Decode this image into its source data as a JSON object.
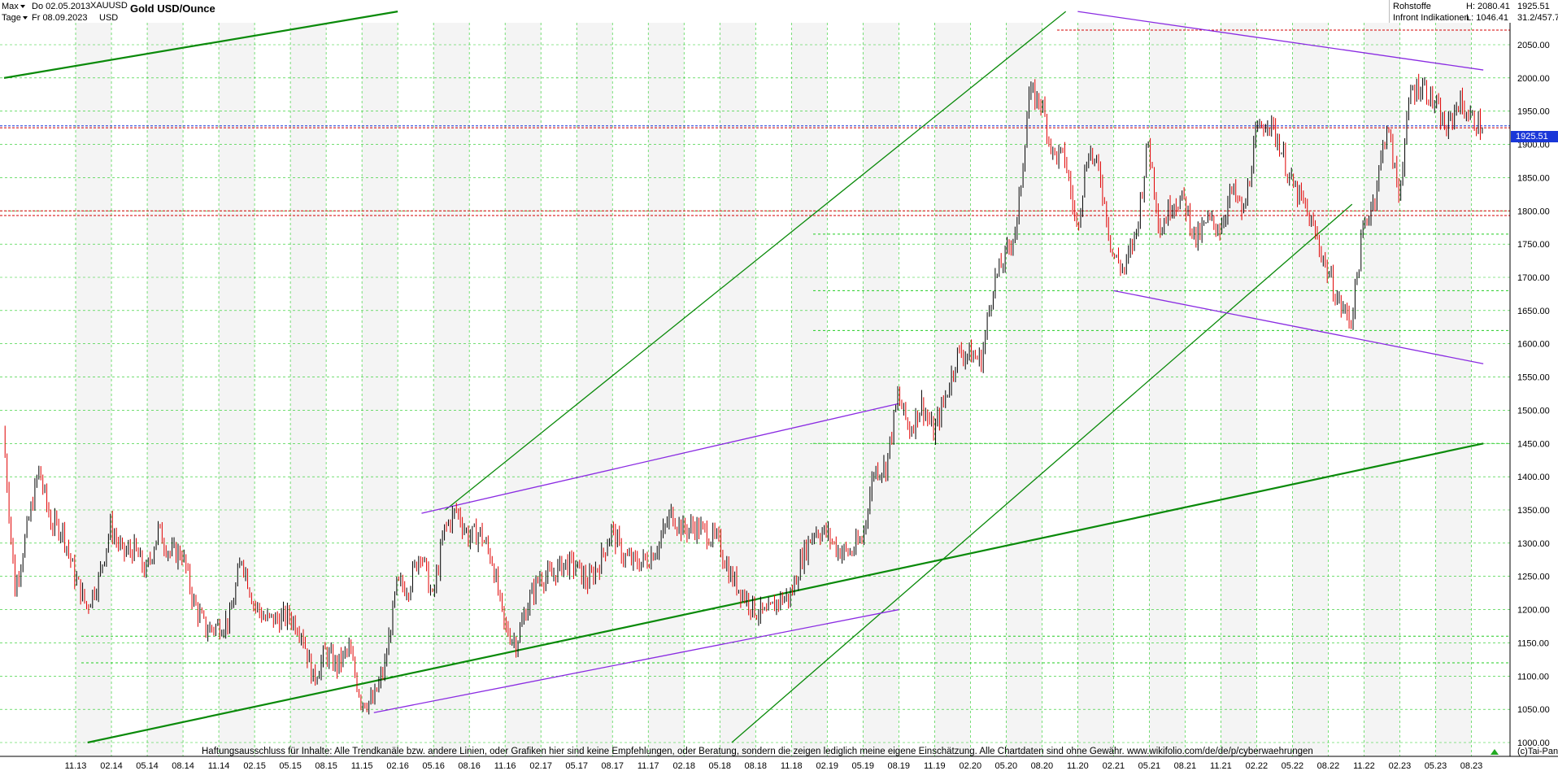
{
  "header": {
    "range_selector": "Max",
    "interval_selector": "Tage",
    "date_from": "Do 02.05.2013",
    "date_to": "Fr 08.09.2023",
    "symbol": "XAUUSD",
    "currency": "USD",
    "title": "Gold USD/Ounce",
    "category": "Rohstoffe",
    "source": "Infront Indikationen",
    "high": "H: 2080.41",
    "low": "L: 1046.41",
    "last_price": "1925.51",
    "range_ratio": "31.2/457.7"
  },
  "price_badge": "1925.51",
  "disclaimer": "Haftungsausschluss für Inhalte: Alle Trendkanäle bzw. andere Linien, oder Grafiken hier sind keine Empfehlungen, oder Beratung, sondern die zeigen lediglich meine eigene Einschätzung. Alle Chartdaten sind ohne Gewähr.  www.wikifolio.com/de/de/p/cyberwaehrungen",
  "credit": "(c)Tai-Pan",
  "colors": {
    "up_candle": "#000000",
    "down_candle": "#e00000",
    "grid": "#22cc22",
    "trend_green": "#0a8a0a",
    "trend_purple": "#8a2be2",
    "support_red": "#d40000",
    "price_line": "#1a37d8"
  },
  "chart_data": {
    "type": "candlestick",
    "title": "Gold USD/Ounce",
    "currency": "USD",
    "ylim": [
      1000,
      2100
    ],
    "y_ticks": [
      1000,
      1050,
      1100,
      1150,
      1200,
      1250,
      1300,
      1350,
      1400,
      1450,
      1500,
      1550,
      1600,
      1650,
      1700,
      1750,
      1800,
      1850,
      1900,
      1950,
      2000,
      2050
    ],
    "x_ticks": [
      "11.13",
      "02.14",
      "05.14",
      "08.14",
      "11.14",
      "02.15",
      "05.15",
      "08.15",
      "11.15",
      "02.16",
      "05.16",
      "08.16",
      "11.16",
      "02.17",
      "05.17",
      "08.17",
      "11.17",
      "02.18",
      "05.18",
      "08.18",
      "11.18",
      "02.19",
      "05.19",
      "08.19",
      "11.19",
      "02.20",
      "05.20",
      "08.20",
      "11.20",
      "02.21",
      "05.21",
      "08.21",
      "11.21",
      "02.22",
      "05.22",
      "08.22",
      "11.22",
      "02.23",
      "05.23",
      "08.23"
    ],
    "x_range": [
      "2013-05-02",
      "2023-09-08"
    ],
    "grid": true,
    "last": 1925.51,
    "high": 2080.41,
    "low": 1046.41,
    "series": [
      {
        "date": "2013-05",
        "close": 1470
      },
      {
        "date": "2013-06",
        "close": 1230
      },
      {
        "date": "2013-07",
        "close": 1320
      },
      {
        "date": "2013-08",
        "close": 1410
      },
      {
        "date": "2013-09",
        "close": 1330
      },
      {
        "date": "2013-10",
        "close": 1320
      },
      {
        "date": "2013-11",
        "close": 1250
      },
      {
        "date": "2013-12",
        "close": 1205
      },
      {
        "date": "2014-01",
        "close": 1245
      },
      {
        "date": "2014-02",
        "close": 1325
      },
      {
        "date": "2014-03",
        "close": 1285
      },
      {
        "date": "2014-04",
        "close": 1290
      },
      {
        "date": "2014-05",
        "close": 1255
      },
      {
        "date": "2014-06",
        "close": 1320
      },
      {
        "date": "2014-07",
        "close": 1285
      },
      {
        "date": "2014-08",
        "close": 1285
      },
      {
        "date": "2014-09",
        "close": 1210
      },
      {
        "date": "2014-10",
        "close": 1170
      },
      {
        "date": "2014-11",
        "close": 1175
      },
      {
        "date": "2014-12",
        "close": 1185
      },
      {
        "date": "2015-01",
        "close": 1280
      },
      {
        "date": "2015-02",
        "close": 1210
      },
      {
        "date": "2015-03",
        "close": 1185
      },
      {
        "date": "2015-04",
        "close": 1185
      },
      {
        "date": "2015-05",
        "close": 1190
      },
      {
        "date": "2015-06",
        "close": 1170
      },
      {
        "date": "2015-07",
        "close": 1095
      },
      {
        "date": "2015-08",
        "close": 1135
      },
      {
        "date": "2015-09",
        "close": 1115
      },
      {
        "date": "2015-10",
        "close": 1140
      },
      {
        "date": "2015-11",
        "close": 1065
      },
      {
        "date": "2015-12",
        "close": 1060
      },
      {
        "date": "2016-01",
        "close": 1115
      },
      {
        "date": "2016-02",
        "close": 1235
      },
      {
        "date": "2016-03",
        "close": 1235
      },
      {
        "date": "2016-04",
        "close": 1290
      },
      {
        "date": "2016-05",
        "close": 1215
      },
      {
        "date": "2016-06",
        "close": 1320
      },
      {
        "date": "2016-07",
        "close": 1350
      },
      {
        "date": "2016-08",
        "close": 1310
      },
      {
        "date": "2016-09",
        "close": 1315
      },
      {
        "date": "2016-10",
        "close": 1275
      },
      {
        "date": "2016-11",
        "close": 1175
      },
      {
        "date": "2016-12",
        "close": 1150
      },
      {
        "date": "2017-01",
        "close": 1210
      },
      {
        "date": "2017-02",
        "close": 1250
      },
      {
        "date": "2017-03",
        "close": 1250
      },
      {
        "date": "2017-04",
        "close": 1270
      },
      {
        "date": "2017-05",
        "close": 1265
      },
      {
        "date": "2017-06",
        "close": 1240
      },
      {
        "date": "2017-07",
        "close": 1270
      },
      {
        "date": "2017-08",
        "close": 1320
      },
      {
        "date": "2017-09",
        "close": 1280
      },
      {
        "date": "2017-10",
        "close": 1270
      },
      {
        "date": "2017-11",
        "close": 1275
      },
      {
        "date": "2017-12",
        "close": 1300
      },
      {
        "date": "2018-01",
        "close": 1345
      },
      {
        "date": "2018-02",
        "close": 1320
      },
      {
        "date": "2018-03",
        "close": 1325
      },
      {
        "date": "2018-04",
        "close": 1315
      },
      {
        "date": "2018-05",
        "close": 1300
      },
      {
        "date": "2018-06",
        "close": 1250
      },
      {
        "date": "2018-07",
        "close": 1225
      },
      {
        "date": "2018-08",
        "close": 1200
      },
      {
        "date": "2018-09",
        "close": 1190
      },
      {
        "date": "2018-10",
        "close": 1215
      },
      {
        "date": "2018-11",
        "close": 1220
      },
      {
        "date": "2018-12",
        "close": 1280
      },
      {
        "date": "2019-01",
        "close": 1320
      },
      {
        "date": "2019-02",
        "close": 1315
      },
      {
        "date": "2019-03",
        "close": 1290
      },
      {
        "date": "2019-04",
        "close": 1285
      },
      {
        "date": "2019-05",
        "close": 1305
      },
      {
        "date": "2019-06",
        "close": 1410
      },
      {
        "date": "2019-07",
        "close": 1415
      },
      {
        "date": "2019-08",
        "close": 1520
      },
      {
        "date": "2019-09",
        "close": 1470
      },
      {
        "date": "2019-10",
        "close": 1510
      },
      {
        "date": "2019-11",
        "close": 1465
      },
      {
        "date": "2019-12",
        "close": 1520
      },
      {
        "date": "2020-01",
        "close": 1585
      },
      {
        "date": "2020-02",
        "close": 1585
      },
      {
        "date": "2020-03",
        "close": 1575
      },
      {
        "date": "2020-04",
        "close": 1690
      },
      {
        "date": "2020-05",
        "close": 1730
      },
      {
        "date": "2020-06",
        "close": 1780
      },
      {
        "date": "2020-07",
        "close": 1975
      },
      {
        "date": "2020-08",
        "close": 1965
      },
      {
        "date": "2020-09",
        "close": 1885
      },
      {
        "date": "2020-10",
        "close": 1880
      },
      {
        "date": "2020-11",
        "close": 1775
      },
      {
        "date": "2020-12",
        "close": 1895
      },
      {
        "date": "2021-01",
        "close": 1850
      },
      {
        "date": "2021-02",
        "close": 1735
      },
      {
        "date": "2021-03",
        "close": 1710
      },
      {
        "date": "2021-04",
        "close": 1770
      },
      {
        "date": "2021-05",
        "close": 1905
      },
      {
        "date": "2021-06",
        "close": 1770
      },
      {
        "date": "2021-07",
        "close": 1815
      },
      {
        "date": "2021-08",
        "close": 1815
      },
      {
        "date": "2021-09",
        "close": 1755
      },
      {
        "date": "2021-10",
        "close": 1785
      },
      {
        "date": "2021-11",
        "close": 1775
      },
      {
        "date": "2021-12",
        "close": 1830
      },
      {
        "date": "2022-01",
        "close": 1795
      },
      {
        "date": "2022-02",
        "close": 1910
      },
      {
        "date": "2022-03",
        "close": 1940
      },
      {
        "date": "2022-04",
        "close": 1900
      },
      {
        "date": "2022-05",
        "close": 1840
      },
      {
        "date": "2022-06",
        "close": 1810
      },
      {
        "date": "2022-07",
        "close": 1765
      },
      {
        "date": "2022-08",
        "close": 1710
      },
      {
        "date": "2022-09",
        "close": 1660
      },
      {
        "date": "2022-10",
        "close": 1635
      },
      {
        "date": "2022-11",
        "close": 1770
      },
      {
        "date": "2022-12",
        "close": 1825
      },
      {
        "date": "2023-01",
        "close": 1930
      },
      {
        "date": "2023-02",
        "close": 1825
      },
      {
        "date": "2023-03",
        "close": 1980
      },
      {
        "date": "2023-04",
        "close": 1990
      },
      {
        "date": "2023-05",
        "close": 1960
      },
      {
        "date": "2023-06",
        "close": 1920
      },
      {
        "date": "2023-07",
        "close": 1965
      },
      {
        "date": "2023-08",
        "close": 1940
      },
      {
        "date": "2023-09",
        "close": 1925
      }
    ],
    "horizontal_levels": {
      "red_dashed": [
        2072,
        1925,
        1800,
        1793
      ],
      "green_dashed": [
        1765,
        1680,
        1620,
        1450,
        1160,
        1120
      ]
    },
    "trendlines": [
      {
        "color": "green",
        "from": [
          "2013-05",
          2000
        ],
        "to": [
          "2016-02",
          2100
        ]
      },
      {
        "color": "green",
        "from": [
          "2013-12",
          1000
        ],
        "to": [
          "2023-09",
          1450
        ]
      },
      {
        "color": "green",
        "from": [
          "2016-06",
          1350
        ],
        "to": [
          "2020-10",
          2100
        ]
      },
      {
        "color": "green",
        "from": [
          "2018-06",
          1000
        ],
        "to": [
          "2022-10",
          1810
        ]
      },
      {
        "color": "purple",
        "from": [
          "2016-04",
          1345
        ],
        "to": [
          "2019-08",
          1510
        ]
      },
      {
        "color": "purple",
        "from": [
          "2015-12",
          1045
        ],
        "to": [
          "2019-08",
          1200
        ]
      },
      {
        "color": "purple",
        "from": [
          "2021-02",
          1680
        ],
        "to": [
          "2023-09",
          1570
        ]
      },
      {
        "color": "purple",
        "from": [
          "2020-11",
          2100
        ],
        "to": [
          "2023-09",
          2012
        ]
      }
    ]
  }
}
